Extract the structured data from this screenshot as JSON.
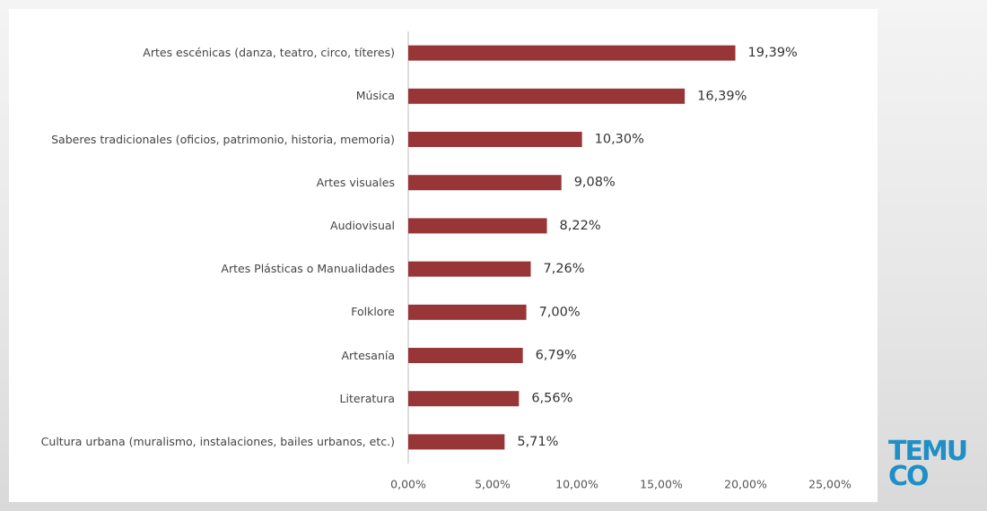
{
  "chart_data": {
    "type": "bar",
    "orientation": "horizontal",
    "categories": [
      "Artes escénicas (danza, teatro, circo, títeres)",
      "Música",
      "Saberes tradicionales (oficios, patrimonio, historia, memoria)",
      "Artes visuales",
      "Audiovisual",
      "Artes Plásticas o Manualidades",
      "Folklore",
      "Artesanía",
      "Literatura",
      "Cultura urbana (muralismo, instalaciones, bailes urbanos, etc.)"
    ],
    "values": [
      19.39,
      16.39,
      10.3,
      9.08,
      8.22,
      7.26,
      7.0,
      6.79,
      6.56,
      5.71
    ],
    "value_labels": [
      "19,39%",
      "16,39%",
      "10,30%",
      "9,08%",
      "8,22%",
      "7,26%",
      "7,00%",
      "6,79%",
      "6,56%",
      "5,71%"
    ],
    "color": "#973537",
    "xlim": [
      0,
      25
    ],
    "xticks": [
      {
        "value": 0,
        "label": "0,00%"
      },
      {
        "value": 5,
        "label": "5,00%"
      },
      {
        "value": 10,
        "label": "10,00%"
      },
      {
        "value": 15,
        "label": "15,00%"
      },
      {
        "value": 20,
        "label": "20,00%"
      },
      {
        "value": 25,
        "label": "25,00%"
      }
    ],
    "grid": false
  },
  "logo": {
    "line1": "TEMU",
    "line2": "CO"
  }
}
